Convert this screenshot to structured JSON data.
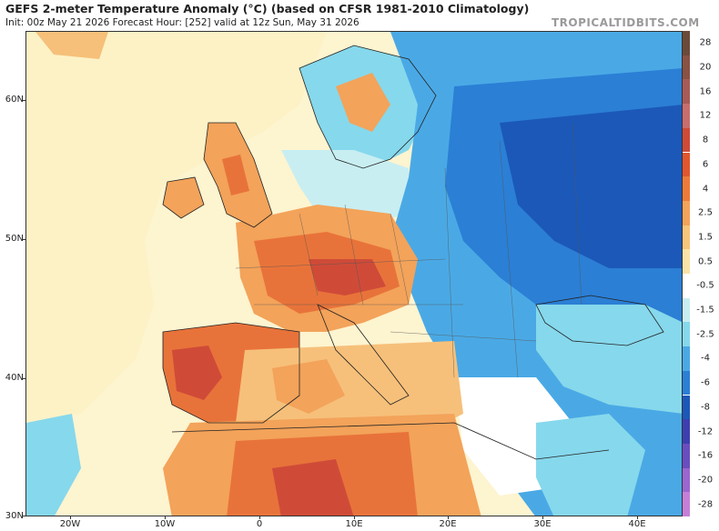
{
  "header": {
    "title": "GEFS 2-meter Temperature Anomaly (°C) (based on CFSR 1981-2010 Climatology)",
    "subtitle": "Init: 00z May 21 2026   Forecast Hour: [252]   valid at 12z Sun, May 31 2026",
    "brand": "TROPICALTIDBITS.COM"
  },
  "axes": {
    "lat_labels": [
      "60N",
      "50N",
      "40N",
      "30N"
    ],
    "lon_labels": [
      "20W",
      "10W",
      "0",
      "10E",
      "20E",
      "30E",
      "40E"
    ]
  },
  "colorbar": {
    "levels": [
      "28",
      "20",
      "16",
      "12",
      "8",
      "6",
      "4",
      "2.5",
      "1.5",
      "0.5",
      "-0.5",
      "-1.5",
      "-2.5",
      "-4",
      "-6",
      "-8",
      "-12",
      "-16",
      "-20",
      "-28"
    ],
    "colors": [
      "#6b4a3a",
      "#8a5244",
      "#a85b58",
      "#c86e6e",
      "#cf4b38",
      "#e0572f",
      "#ec7b3a",
      "#f3a35a",
      "#f8c57c",
      "#fbe3a8",
      "#ffffff",
      "#c8eef2",
      "#86d8ec",
      "#4aa9e5",
      "#2b7fd5",
      "#1c58b8",
      "#3d3fb0",
      "#6a4ec0",
      "#9a66cf",
      "#c47fd8"
    ]
  },
  "map": {
    "palette": {
      "sea": "#fdf4d0",
      "land_warm": "#f6c07a",
      "hot": "#e8733a",
      "very_hot": "#cf4b38",
      "neutral": "#ffffff",
      "cool": "#86d8ec",
      "cold": "#4aa9e5",
      "very_cold": "#2b7fd5",
      "deep_cold": "#1c58b8"
    }
  }
}
